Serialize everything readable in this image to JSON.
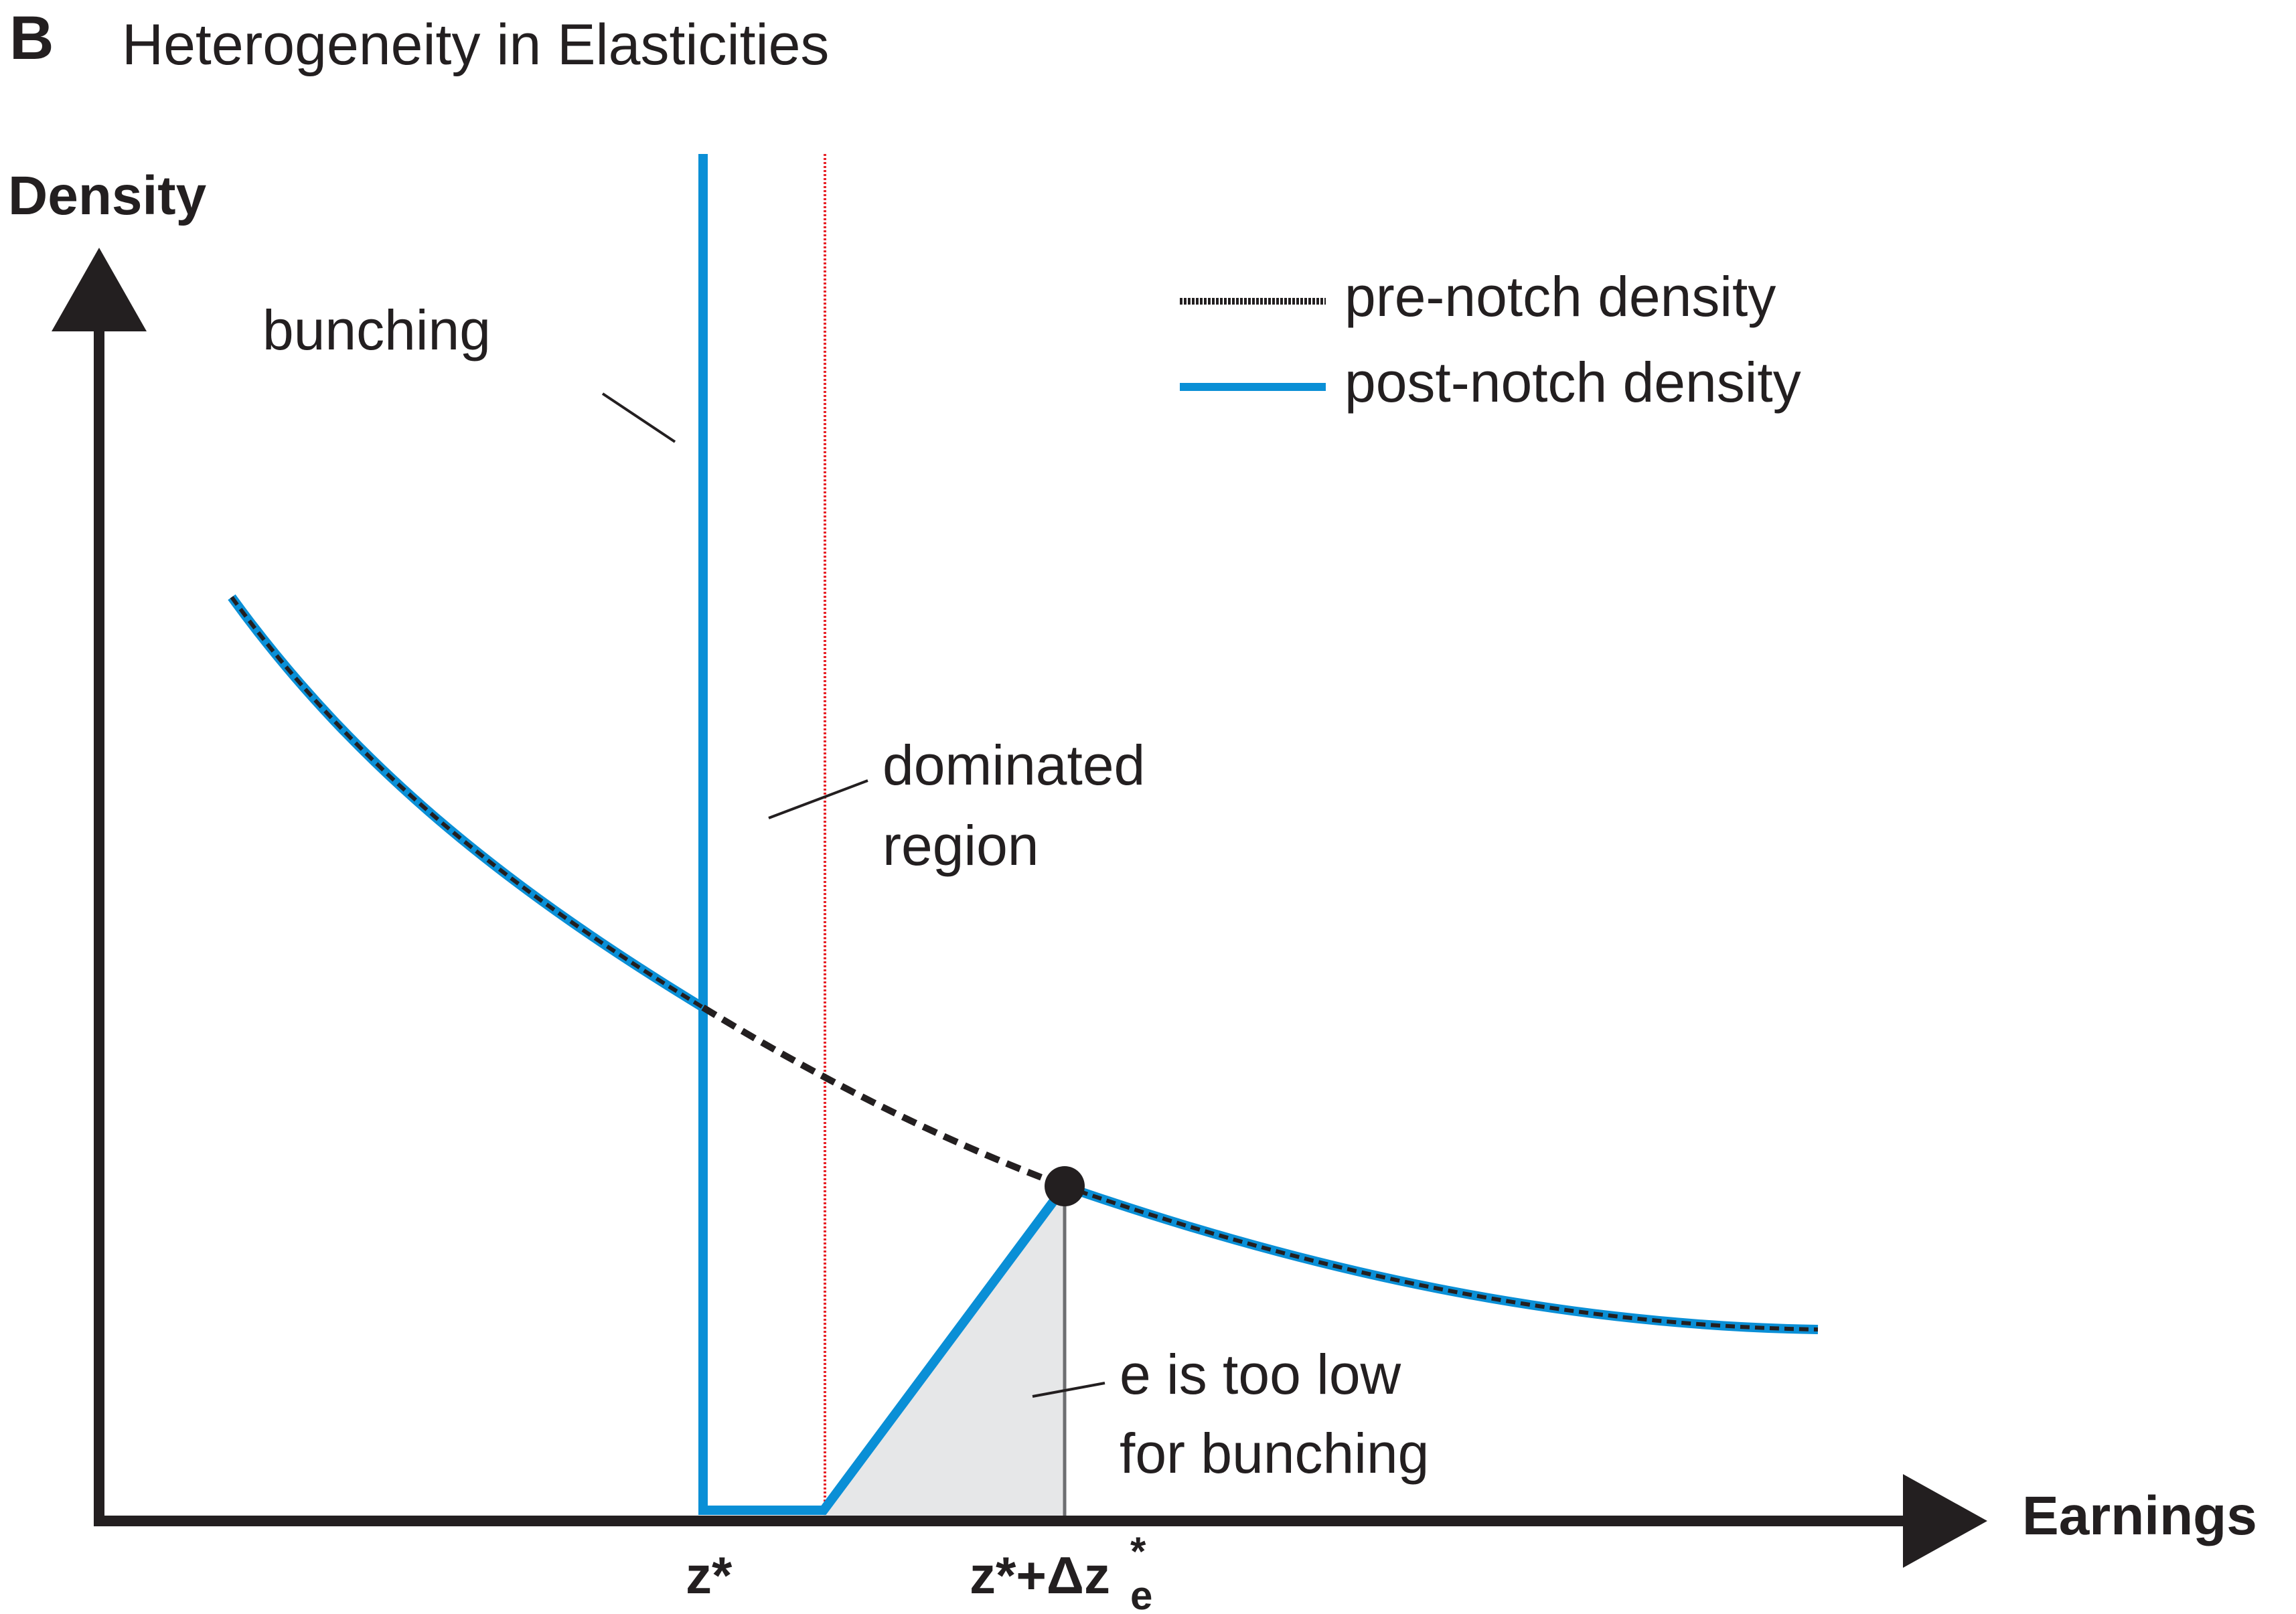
{
  "panel": {
    "letter": "B",
    "title": "Heterogeneity in Elasticities"
  },
  "axes": {
    "y_label": "Density",
    "x_label": "Earnings"
  },
  "legend": {
    "items": [
      {
        "label": "pre-notch density",
        "style": "black dashed line"
      },
      {
        "label": "post-notch density",
        "style": "blue solid line"
      }
    ]
  },
  "annotations": {
    "bunching": "bunching",
    "dominated_line1": "dominated",
    "dominated_line2": "region",
    "low_e_line1": "e is too low",
    "low_e_line2": "for bunching"
  },
  "ticks": {
    "z_star": "z*",
    "z_plus_prefix": "z*+Δz",
    "z_plus_sup": "*",
    "z_plus_sub": "e"
  },
  "colors": {
    "post_notch": "#0a8fd6",
    "pre_notch": "#231f20",
    "dominated_marker": "#e8242a",
    "shaded_area": "#e6e7e8",
    "axis": "#231f20"
  }
}
